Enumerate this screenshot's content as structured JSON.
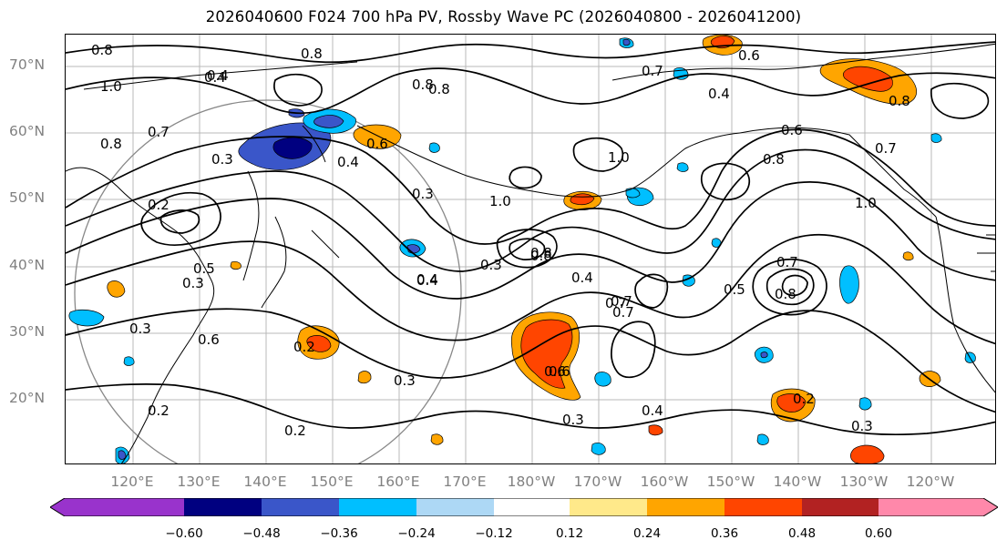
{
  "title": "2026040600 F024 700 hPa PV, Rossby Wave PC (2026040800 - 2026041200)",
  "lat_labels": [
    "70°N",
    "60°N",
    "50°N",
    "40°N",
    "30°N",
    "20°N"
  ],
  "lon_labels": [
    "120°E",
    "130°E",
    "140°E",
    "150°E",
    "160°E",
    "170°E",
    "180°W",
    "170°W",
    "160°W",
    "150°W",
    "140°W",
    "130°W",
    "120°W"
  ],
  "colorbar": {
    "colors": [
      "#9933cc",
      "#000080",
      "#3a56c9",
      "#00bfff",
      "#add8f5",
      "#ffffff",
      "#ffe98a",
      "#ffa500",
      "#ff4500",
      "#b22222",
      "#ff88aa"
    ],
    "tick_labels": [
      "−0.60",
      "−0.48",
      "−0.36",
      "−0.24",
      "−0.12",
      "0.12",
      "0.24",
      "0.36",
      "0.48",
      "0.60"
    ]
  },
  "contour_labels": [
    "0.8",
    "0.8",
    "1.0",
    "0.8",
    "0.7",
    "0.4",
    "0.3",
    "0.2",
    "0.4",
    "0.6",
    "0.3",
    "0.4",
    "0.3",
    "0.8",
    "1.0",
    "0.7",
    "0.4",
    "0.6",
    "0.8",
    "0.7",
    "0.8",
    "0.4",
    "0.6",
    "0.2",
    "0.3",
    "0.8",
    "0.7",
    "0.4",
    "0.3",
    "0.2",
    "0.4",
    "1.0",
    "0.8",
    "0.6",
    "0.4",
    "0.7",
    "0.5",
    "0.7",
    "0.8",
    "0.3",
    "0.6",
    "0.3",
    "0.2",
    "0.3",
    "0.2",
    "0.6",
    "0.7",
    "0.8",
    "1.0",
    "0.5"
  ]
}
